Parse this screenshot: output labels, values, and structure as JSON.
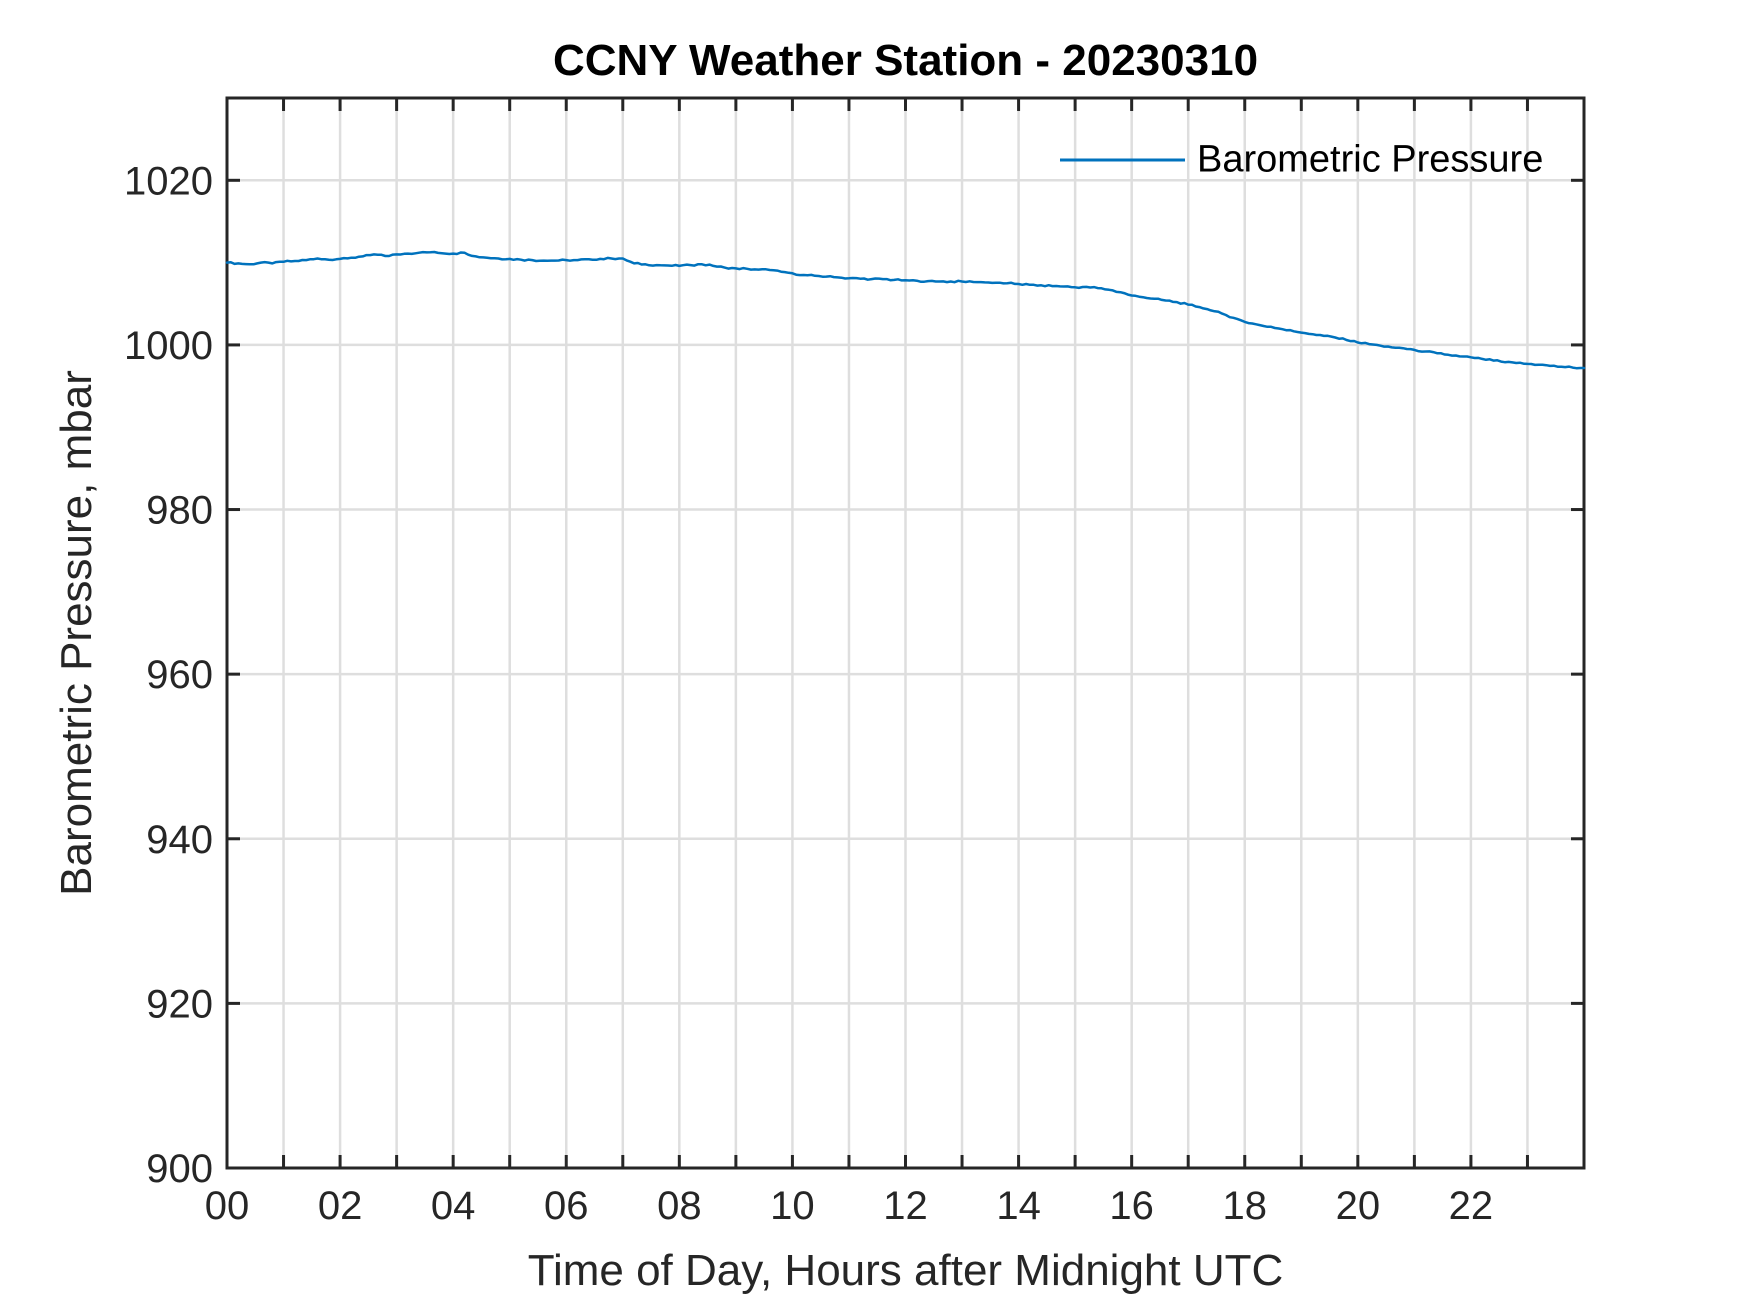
{
  "figure_title": "CCNY Weather Station - 20230310",
  "colors": {
    "series_blue": "#0072BD",
    "axis": "#262626",
    "grid": "#dedede",
    "background": "#ffffff"
  },
  "legend": {
    "entries": [
      {
        "label": "Barometric Pressure",
        "color": "#0072BD"
      }
    ],
    "position": "northeast",
    "box": false
  },
  "chart_data": {
    "type": "line",
    "title": "CCNY Weather Station - 20230310",
    "xlabel": "Time of Day, Hours after Midnight UTC",
    "ylabel": "Barometric Pressure, mbar",
    "xlim": [
      0,
      24
    ],
    "ylim": [
      900,
      1030
    ],
    "grid": true,
    "x_grid_step_hours": 1,
    "x_labeled_ticks": [
      {
        "value": 0,
        "label": "00"
      },
      {
        "value": 2,
        "label": "02"
      },
      {
        "value": 4,
        "label": "04"
      },
      {
        "value": 6,
        "label": "06"
      },
      {
        "value": 8,
        "label": "08"
      },
      {
        "value": 10,
        "label": "10"
      },
      {
        "value": 12,
        "label": "12"
      },
      {
        "value": 14,
        "label": "14"
      },
      {
        "value": 16,
        "label": "16"
      },
      {
        "value": 18,
        "label": "18"
      },
      {
        "value": 20,
        "label": "20"
      },
      {
        "value": 22,
        "label": "22"
      }
    ],
    "y_ticks": [
      {
        "value": 900,
        "label": "900"
      },
      {
        "value": 920,
        "label": "920"
      },
      {
        "value": 940,
        "label": "940"
      },
      {
        "value": 960,
        "label": "960"
      },
      {
        "value": 980,
        "label": "980"
      },
      {
        "value": 1000,
        "label": "1000"
      },
      {
        "value": 1020,
        "label": "1020"
      }
    ],
    "legend_position": "northeast",
    "series": [
      {
        "name": "Barometric Pressure",
        "color": "#0072BD",
        "x_start_hours": 0,
        "x_step_hours": 0.2,
        "noise_mbar": 0.1,
        "values": [
          1010.0,
          1009.9,
          1009.8,
          1010.0,
          1009.9,
          1010.1,
          1010.2,
          1010.3,
          1010.5,
          1010.35,
          1010.45,
          1010.6,
          1010.75,
          1011.0,
          1010.8,
          1011.0,
          1011.1,
          1011.2,
          1011.25,
          1011.15,
          1011.1,
          1011.2,
          1010.75,
          1010.6,
          1010.5,
          1010.45,
          1010.35,
          1010.3,
          1010.25,
          1010.25,
          1010.3,
          1010.3,
          1010.4,
          1010.45,
          1010.5,
          1010.5,
          1009.9,
          1009.8,
          1009.7,
          1009.65,
          1009.6,
          1009.7,
          1009.8,
          1009.6,
          1009.4,
          1009.3,
          1009.25,
          1009.15,
          1009.1,
          1008.9,
          1008.7,
          1008.5,
          1008.4,
          1008.3,
          1008.2,
          1008.1,
          1008.05,
          1008.0,
          1008.0,
          1007.9,
          1007.85,
          1007.8,
          1007.75,
          1007.7,
          1007.7,
          1007.7,
          1007.65,
          1007.6,
          1007.55,
          1007.5,
          1007.4,
          1007.3,
          1007.25,
          1007.15,
          1007.1,
          1007.0,
          1007.05,
          1006.9,
          1006.7,
          1006.4,
          1006.0,
          1005.8,
          1005.6,
          1005.4,
          1005.2,
          1004.9,
          1004.6,
          1004.2,
          1003.8,
          1003.3,
          1002.8,
          1002.5,
          1002.2,
          1002.0,
          1001.8,
          1001.5,
          1001.3,
          1001.1,
          1000.9,
          1000.6,
          1000.3,
          1000.1,
          999.9,
          999.7,
          999.6,
          999.4,
          999.2,
          999.0,
          998.8,
          998.6,
          998.5,
          998.3,
          998.1,
          997.9,
          997.8,
          997.7,
          997.6,
          997.45,
          997.35,
          997.25,
          997.2
        ]
      }
    ]
  }
}
